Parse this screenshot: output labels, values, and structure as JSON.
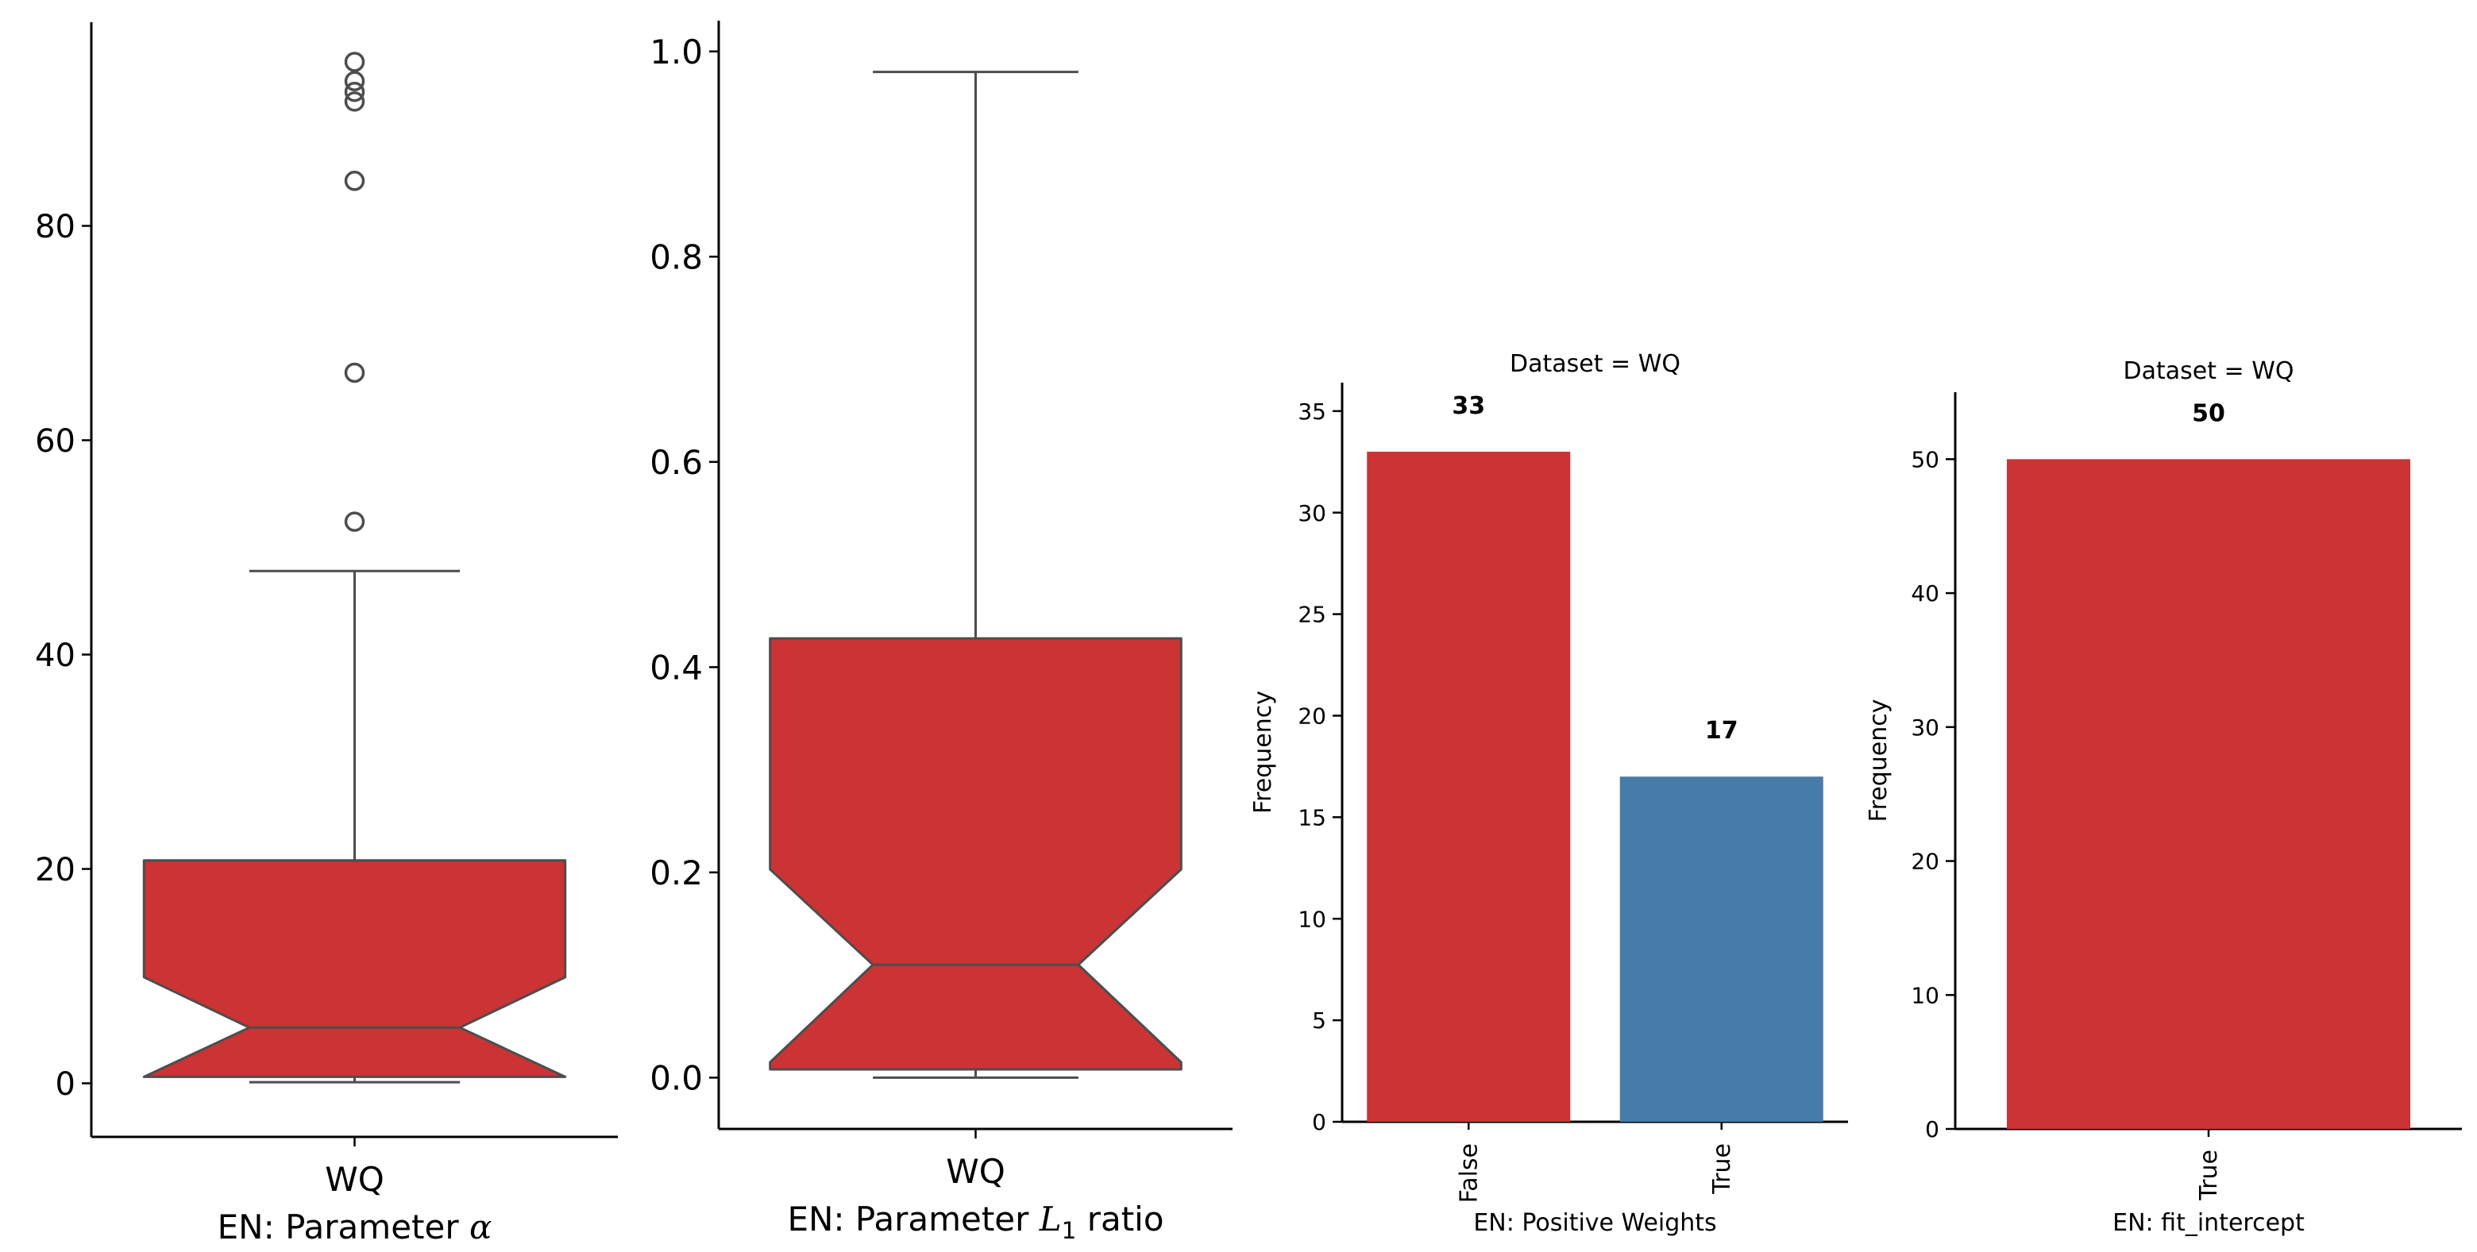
{
  "colors": {
    "red": "#cb3335",
    "blue": "#477ca8",
    "line": "#4d4d4d",
    "axis": "#000000"
  },
  "chart_data": [
    {
      "type": "boxplot",
      "notched": true,
      "categories": [
        "WQ"
      ],
      "xlabel_prefix": "EN: Parameter ",
      "xlabel_math": "α",
      "xlabel_suffix": "",
      "ylim": [
        -5,
        99
      ],
      "yticks": [
        0,
        20,
        40,
        60,
        80
      ],
      "stats": {
        "whislo": 0.1,
        "q1": 0.6,
        "median": 5.2,
        "q3": 20.8,
        "whishi": 47.8,
        "notch_lo": 9.9,
        "notch_hi": 9.9,
        "notch_inner_lo": 0.6
      },
      "fliers": [
        52.4,
        66.3,
        84.2,
        91.6,
        92.5,
        93.5,
        95.3
      ],
      "grid": false,
      "legend": "none"
    },
    {
      "type": "boxplot",
      "notched": true,
      "categories": [
        "WQ"
      ],
      "xlabel_prefix": "EN: Parameter ",
      "xlabel_math": "L",
      "xlabel_sub": "1",
      "xlabel_suffix": " ratio",
      "ylim": [
        -0.05,
        1.03
      ],
      "yticks": [
        "0.0",
        "0.2",
        "0.4",
        "0.6",
        "0.8",
        "1.0"
      ],
      "stats": {
        "whislo": 0.0,
        "q1": 0.008,
        "median": 0.11,
        "q3": 0.428,
        "whishi": 0.98,
        "notch_lo": 0.203,
        "notch_hi": 0.203,
        "notch_inner_lo": 0.015
      },
      "fliers": [],
      "grid": false,
      "legend": "none"
    },
    {
      "type": "bar",
      "title": "Dataset = WQ",
      "categories": [
        "False",
        "True"
      ],
      "values": [
        33,
        17
      ],
      "value_labels": [
        "33",
        "17"
      ],
      "bar_colors": [
        "#cb3335",
        "#477ca8"
      ],
      "xlabel": "EN: Positive Weights",
      "ylabel": "Frequency",
      "ylim": [
        0,
        36.4
      ],
      "yticks": [
        0,
        5,
        10,
        15,
        20,
        25,
        30,
        35
      ],
      "grid": false,
      "legend": "none"
    },
    {
      "type": "bar",
      "title": "Dataset = WQ",
      "categories": [
        "True"
      ],
      "values": [
        50
      ],
      "value_labels": [
        "50"
      ],
      "bar_colors": [
        "#cb3335"
      ],
      "xlabel": "EN: fit_intercept",
      "ylabel": "Frequency",
      "ylim": [
        0,
        55
      ],
      "yticks": [
        0,
        10,
        20,
        30,
        40,
        50
      ],
      "grid": false,
      "legend": "none"
    }
  ]
}
